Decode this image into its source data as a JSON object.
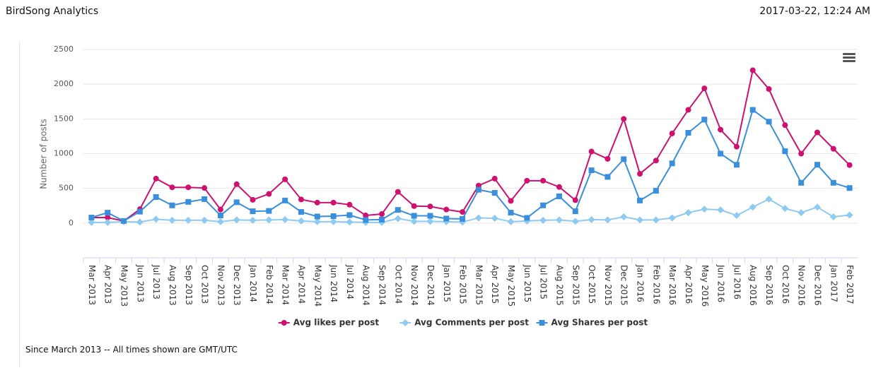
{
  "header": {
    "title": "BirdSong Analytics",
    "timestamp": "2017-03-22, 12:24 AM"
  },
  "footer": {
    "note": "Since March 2013 -- All times shown are GMT/UTC"
  },
  "chart_data": {
    "type": "line",
    "y_label": "Number of posts",
    "categories": [
      "Mar 2013",
      "Apr 2013",
      "May 2013",
      "Jun 2013",
      "Jul 2013",
      "Aug 2013",
      "Sep 2013",
      "Oct 2013",
      "Nov 2013",
      "Dec 2013",
      "Jan 2014",
      "Feb 2014",
      "Mar 2014",
      "Apr 2014",
      "May 2014",
      "Jun 2014",
      "Jul 2014",
      "Aug 2014",
      "Sep 2014",
      "Oct 2014",
      "Nov 2014",
      "Dec 2014",
      "Jan 2015",
      "Feb 2015",
      "Mar 2015",
      "Apr 2015",
      "May 2015",
      "Jun 2015",
      "Jul 2015",
      "Aug 2015",
      "Sep 2015",
      "Oct 2015",
      "Nov 2015",
      "Dec 2015",
      "Jan 2016",
      "Feb 2016",
      "Mar 2016",
      "Apr 2016",
      "May 2016",
      "Jun 2016",
      "Jul 2016",
      "Aug 2016",
      "Sep 2016",
      "Oct 2016",
      "Nov 2016",
      "Dec 2016",
      "Jan 2017",
      "Feb 2017"
    ],
    "series": [
      {
        "name": "Avg likes per post",
        "color": "#d0106e",
        "marker": "circle",
        "values": [
          80,
          80,
          30,
          200,
          640,
          515,
          515,
          505,
          195,
          560,
          335,
          420,
          630,
          340,
          295,
          295,
          265,
          110,
          130,
          450,
          245,
          240,
          195,
          160,
          540,
          640,
          320,
          610,
          610,
          520,
          330,
          1030,
          925,
          1500,
          710,
          900,
          1290,
          1630,
          1940,
          1345,
          1100,
          2200,
          1930,
          1410,
          1000,
          1305,
          1070,
          835
        ]
      },
      {
        "name": "Avg Comments per post",
        "color": "#8fcbf0",
        "marker": "diamond",
        "values": [
          10,
          10,
          20,
          15,
          55,
          40,
          40,
          40,
          20,
          45,
          40,
          45,
          50,
          30,
          20,
          20,
          15,
          10,
          10,
          65,
          25,
          25,
          20,
          15,
          75,
          70,
          20,
          30,
          40,
          45,
          25,
          50,
          45,
          90,
          45,
          45,
          75,
          150,
          200,
          190,
          110,
          230,
          345,
          210,
          150,
          230,
          90,
          115
        ]
      },
      {
        "name": "Avg Shares per post",
        "color": "#3a8fdd",
        "marker": "square",
        "values": [
          80,
          150,
          30,
          165,
          375,
          255,
          305,
          345,
          110,
          300,
          170,
          175,
          325,
          160,
          95,
          100,
          115,
          45,
          50,
          190,
          105,
          105,
          65,
          60,
          480,
          435,
          150,
          75,
          255,
          385,
          170,
          760,
          665,
          920,
          325,
          465,
          860,
          1300,
          1490,
          1000,
          840,
          1630,
          1460,
          1035,
          580,
          840,
          580,
          505
        ]
      }
    ],
    "ylim": [
      -500,
      2500
    ],
    "yticks": [
      0,
      500,
      1000,
      1500,
      2000,
      2500
    ],
    "grid": true,
    "legend": "bottom"
  }
}
